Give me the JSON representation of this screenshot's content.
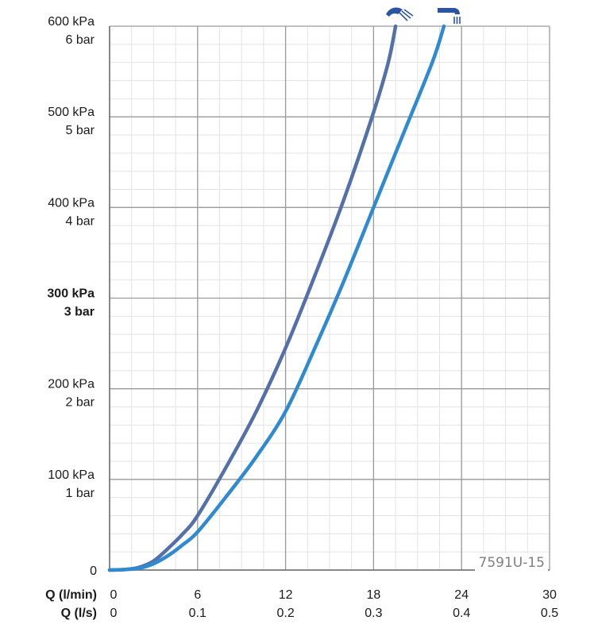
{
  "chart_data": {
    "type": "line",
    "title": "",
    "x_label_primary": "Q (l/min)",
    "x_label_secondary": "Q (l/s)",
    "x_ticks_primary": [
      "0",
      "6",
      "12",
      "18",
      "24",
      "30"
    ],
    "x_ticks_secondary": [
      "0",
      "0.1",
      "0.2",
      "0.3",
      "0.4",
      "0.5"
    ],
    "xlim": [
      0,
      30
    ],
    "y_ticks": [
      {
        "value": 0,
        "kpa": "0",
        "bar": "",
        "bold": false
      },
      {
        "value": 100,
        "kpa": "100 kPa",
        "bar": "1 bar",
        "bold": false
      },
      {
        "value": 200,
        "kpa": "200 kPa",
        "bar": "2 bar",
        "bold": false
      },
      {
        "value": 300,
        "kpa": "300 kPa",
        "bar": "3 bar",
        "bold": true
      },
      {
        "value": 400,
        "kpa": "400 kPa",
        "bar": "4 bar",
        "bold": false
      },
      {
        "value": 500,
        "kpa": "500 kPa",
        "bar": "5 bar",
        "bold": false
      },
      {
        "value": 600,
        "kpa": "600 kPa",
        "bar": "6 bar",
        "bold": false
      }
    ],
    "ylim": [
      0,
      600
    ],
    "grid": true,
    "code_label": "7591U-15",
    "series": [
      {
        "icon": "shower-head-icon",
        "color": "#5470a8",
        "points": [
          [
            0,
            0
          ],
          [
            1,
            0.5
          ],
          [
            2,
            3
          ],
          [
            3,
            10
          ],
          [
            4,
            24
          ],
          [
            5,
            40
          ],
          [
            6,
            60
          ],
          [
            8,
            115
          ],
          [
            10,
            175
          ],
          [
            12,
            245
          ],
          [
            14,
            325
          ],
          [
            16,
            410
          ],
          [
            18,
            505
          ],
          [
            19,
            560
          ],
          [
            19.5,
            600
          ]
        ]
      },
      {
        "icon": "bath-spout-icon",
        "color": "#2f8ad0",
        "points": [
          [
            0,
            0
          ],
          [
            1,
            0.5
          ],
          [
            2,
            2
          ],
          [
            3,
            7
          ],
          [
            4,
            16
          ],
          [
            5,
            28
          ],
          [
            6,
            42
          ],
          [
            8,
            82
          ],
          [
            10,
            125
          ],
          [
            12,
            175
          ],
          [
            14,
            245
          ],
          [
            16,
            320
          ],
          [
            18,
            400
          ],
          [
            20,
            480
          ],
          [
            22,
            560
          ],
          [
            22.8,
            600
          ]
        ]
      }
    ]
  }
}
